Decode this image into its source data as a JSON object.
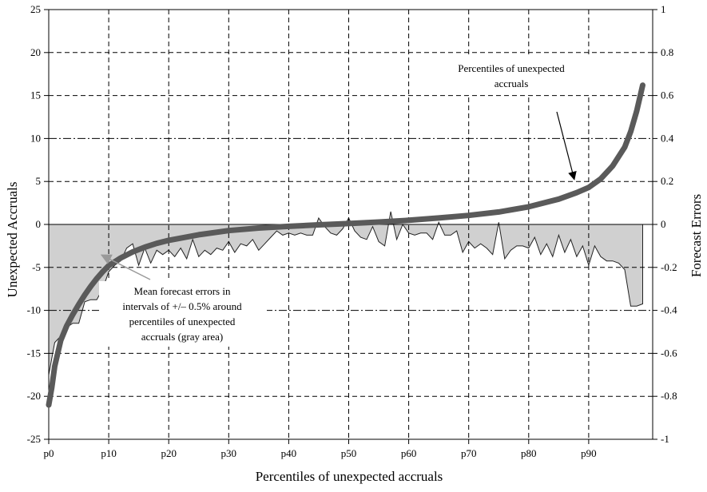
{
  "chart_data": {
    "type": "line",
    "xlabel": "Percentiles of unexpected accruals",
    "ylabel_left": "Unexpected Accruals",
    "ylabel_right": "Forecast Errors",
    "ylim_left": [
      -25,
      25
    ],
    "ylim_right": [
      -1,
      1
    ],
    "yticks_left": [
      "25",
      "20",
      "15",
      "10",
      "5",
      "0",
      "-5",
      "-10",
      "-15",
      "-20",
      "-25"
    ],
    "yticks_right": [
      "1",
      "0.8",
      "0.6",
      "0.4",
      "0.2",
      "0",
      "-0.2",
      "-0.4",
      "-0.6",
      "-0.8",
      "-1"
    ],
    "xlim": [
      0,
      100
    ],
    "xticks": [
      {
        "x": 0,
        "label": "p0"
      },
      {
        "x": 10,
        "label": "p10"
      },
      {
        "x": 20,
        "label": "p20"
      },
      {
        "x": 30,
        "label": "p30"
      },
      {
        "x": 40,
        "label": "p40"
      },
      {
        "x": 50,
        "label": "p50"
      },
      {
        "x": 60,
        "label": "p60"
      },
      {
        "x": 70,
        "label": "p70"
      },
      {
        "x": 80,
        "label": "p80"
      },
      {
        "x": 90,
        "label": "p90"
      }
    ],
    "grid": true,
    "series": [
      {
        "axis": "left",
        "style": "thick-dark-gray-line",
        "color": "#5a5a5a",
        "x": [
          0,
          0.5,
          1,
          2,
          3,
          4,
          5,
          6,
          7,
          8,
          9,
          10,
          12,
          14,
          16,
          18,
          20,
          25,
          30,
          35,
          40,
          45,
          50,
          55,
          60,
          65,
          70,
          75,
          80,
          85,
          88,
          90,
          92,
          94,
          96,
          97,
          98,
          99
        ],
        "y": [
          -21,
          -19,
          -16.5,
          -13.5,
          -11.8,
          -10.5,
          -9.3,
          -8.2,
          -7.2,
          -6.3,
          -5.5,
          -4.8,
          -3.9,
          -3.2,
          -2.65,
          -2.2,
          -1.85,
          -1.2,
          -0.72,
          -0.42,
          -0.22,
          -0.05,
          0.1,
          0.28,
          0.48,
          0.75,
          1.05,
          1.45,
          2.05,
          2.95,
          3.7,
          4.3,
          5.3,
          6.8,
          9.0,
          10.8,
          13.2,
          16.2
        ]
      },
      {
        "axis": "right",
        "style": "gray-area",
        "color": "#d0d0d0",
        "x": [
          0,
          1,
          2,
          3,
          4,
          5,
          6,
          7,
          8,
          9,
          10,
          11,
          12,
          13,
          14,
          15,
          16,
          17,
          18,
          19,
          20,
          21,
          22,
          23,
          24,
          25,
          26,
          27,
          28,
          29,
          30,
          31,
          32,
          33,
          34,
          35,
          36,
          37,
          38,
          39,
          40,
          41,
          42,
          43,
          44,
          45,
          46,
          47,
          48,
          49,
          50,
          51,
          52,
          53,
          54,
          55,
          56,
          57,
          58,
          59,
          60,
          61,
          62,
          63,
          64,
          65,
          66,
          67,
          68,
          69,
          70,
          71,
          72,
          73,
          74,
          75,
          76,
          77,
          78,
          79,
          80,
          81,
          82,
          83,
          84,
          85,
          86,
          87,
          88,
          89,
          90,
          91,
          92,
          93,
          94,
          95,
          96,
          97,
          98,
          99
        ],
        "y": [
          -0.7,
          -0.55,
          -0.52,
          -0.48,
          -0.46,
          -0.46,
          -0.36,
          -0.35,
          -0.35,
          -0.3,
          -0.22,
          -0.19,
          -0.17,
          -0.11,
          -0.09,
          -0.19,
          -0.11,
          -0.18,
          -0.12,
          -0.14,
          -0.12,
          -0.15,
          -0.11,
          -0.16,
          -0.07,
          -0.15,
          -0.12,
          -0.14,
          -0.11,
          -0.12,
          -0.08,
          -0.13,
          -0.09,
          -0.1,
          -0.07,
          -0.12,
          -0.09,
          -0.06,
          -0.03,
          -0.05,
          -0.04,
          -0.05,
          -0.04,
          -0.05,
          -0.05,
          0.03,
          -0.01,
          -0.04,
          -0.05,
          -0.02,
          0.03,
          -0.03,
          -0.06,
          -0.07,
          -0.01,
          -0.08,
          -0.1,
          0.06,
          -0.07,
          0.0,
          -0.04,
          -0.05,
          -0.04,
          -0.04,
          -0.07,
          0.01,
          -0.05,
          -0.05,
          -0.03,
          -0.13,
          -0.08,
          -0.11,
          -0.09,
          -0.11,
          -0.14,
          0.01,
          -0.16,
          -0.12,
          -0.1,
          -0.1,
          -0.11,
          -0.06,
          -0.14,
          -0.09,
          -0.15,
          -0.05,
          -0.13,
          -0.07,
          -0.15,
          -0.1,
          -0.19,
          -0.1,
          -0.15,
          -0.17,
          -0.17,
          -0.18,
          -0.21,
          -0.38,
          -0.38,
          -0.37
        ]
      }
    ],
    "annotations": [
      {
        "id": "curve",
        "lines": [
          "Percentiles of unexpected",
          "accruals"
        ],
        "arrow_to": {
          "x": 90,
          "y": 4.3,
          "axis": "left"
        }
      },
      {
        "id": "area",
        "lines": [
          "Mean forecast errors in",
          "intervals of +/– 0.5% around",
          "percentiles of unexpected",
          "accruals  (gray area)"
        ],
        "arrow_to": {
          "x": 8,
          "y": -0.12,
          "axis": "right"
        }
      }
    ]
  }
}
